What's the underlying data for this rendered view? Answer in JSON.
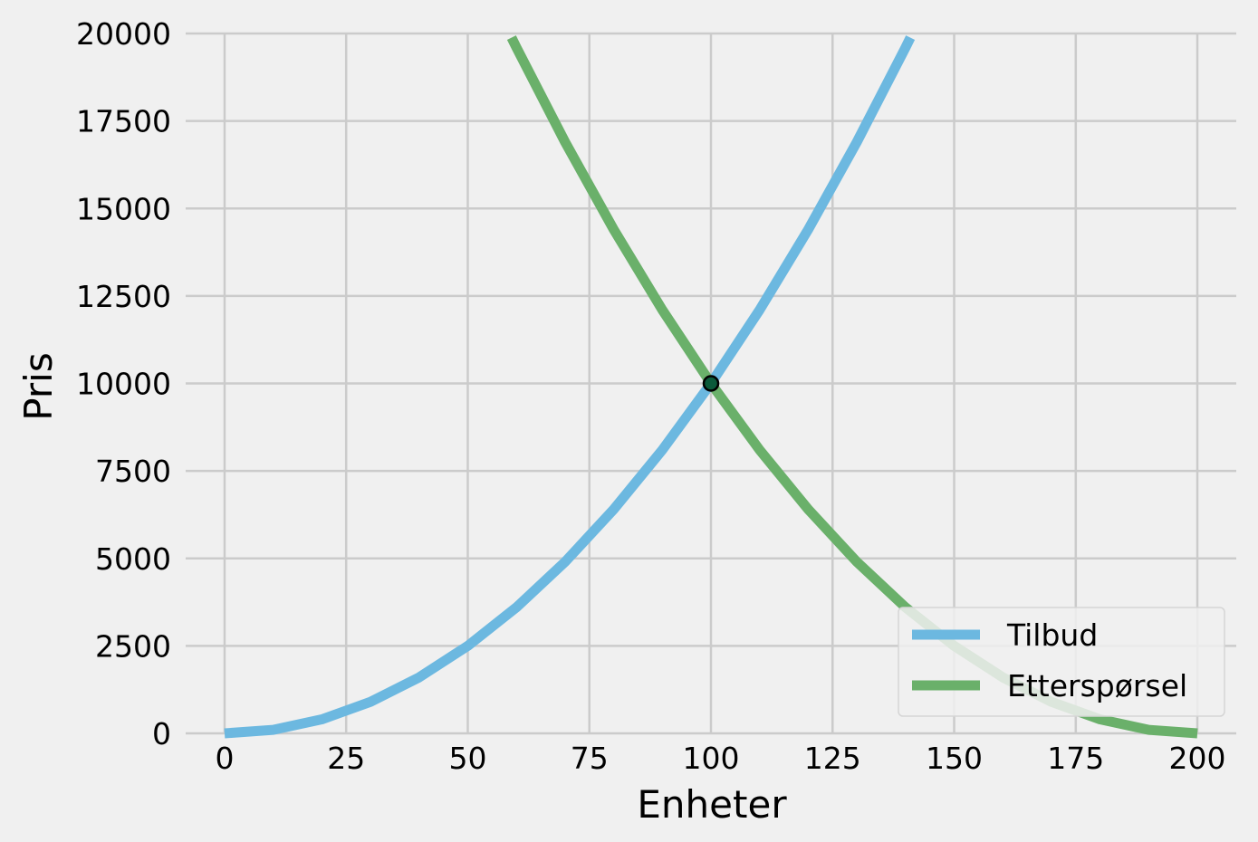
{
  "chart_data": {
    "type": "line",
    "title": "",
    "xlabel": "Enheter",
    "ylabel": "Pris",
    "xlim": [
      -8,
      208
    ],
    "ylim": [
      0,
      20000
    ],
    "xticks": [
      0,
      25,
      50,
      75,
      100,
      125,
      150,
      175,
      200
    ],
    "yticks": [
      0,
      2500,
      5000,
      7500,
      10000,
      12500,
      15000,
      17500,
      20000
    ],
    "xtick_labels": [
      "0",
      "25",
      "50",
      "75",
      "100",
      "125",
      "150",
      "175",
      "200"
    ],
    "ytick_labels": [
      "0",
      "2500",
      "5000",
      "7500",
      "10000",
      "12500",
      "15000",
      "17500",
      "20000"
    ],
    "grid": true,
    "legend_position": "lower right",
    "series": [
      {
        "name": "Tilbud",
        "color": "#6cb8e0",
        "x": [
          0,
          10,
          20,
          30,
          40,
          50,
          60,
          70,
          80,
          90,
          100,
          110,
          120,
          130,
          140,
          141
        ],
        "y": [
          0,
          100,
          400,
          900,
          1600,
          2500,
          3600,
          4900,
          6400,
          8100,
          10000,
          12100,
          14400,
          16900,
          19600,
          19881
        ]
      },
      {
        "name": "Etterspørsel",
        "color": "#6ab06a",
        "x": [
          59,
          60,
          70,
          80,
          90,
          100,
          110,
          120,
          130,
          140,
          150,
          160,
          170,
          180,
          190,
          200
        ],
        "y": [
          19881,
          19600,
          16900,
          14400,
          12100,
          10000,
          8100,
          6400,
          4900,
          3600,
          2500,
          1600,
          900,
          400,
          100,
          0
        ]
      }
    ],
    "points": [
      {
        "x": 100,
        "y": 10000,
        "color": "#0b5a3a"
      }
    ]
  }
}
